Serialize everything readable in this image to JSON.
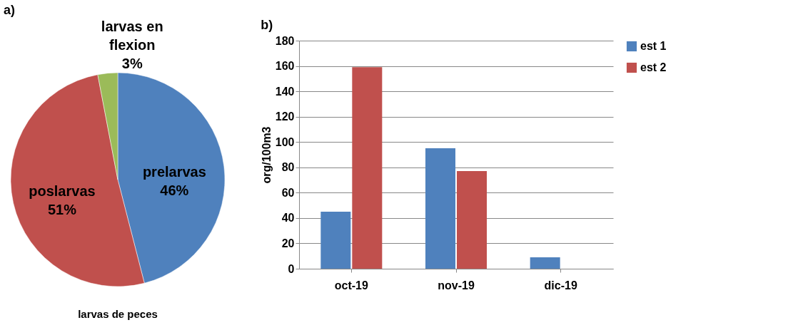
{
  "chart_data": [
    {
      "type": "pie",
      "title": "a)",
      "categories": [
        "prelarvas",
        "poslarvas",
        "larvas en flexion"
      ],
      "values": [
        46,
        51,
        3
      ],
      "colors": [
        "#4f81bd",
        "#c0504d",
        "#9bbb59"
      ],
      "value_labels": [
        "46%",
        "51%",
        "3%"
      ],
      "annotations": [
        "larvas de peces"
      ],
      "legend": false
    },
    {
      "type": "bar",
      "title": "b)",
      "categories": [
        "oct-19",
        "nov-19",
        "dic-19"
      ],
      "ylabel": "org/100m3",
      "ylim": [
        0,
        180
      ],
      "yticks": [
        0,
        20,
        40,
        60,
        80,
        100,
        120,
        140,
        160,
        180
      ],
      "grid": "y",
      "legend": "right",
      "series": [
        {
          "name": "est 1",
          "color": "#4f81bd",
          "values": [
            45,
            95,
            9
          ]
        },
        {
          "name": "est 2",
          "color": "#c0504d",
          "values": [
            159,
            77,
            0
          ]
        }
      ]
    }
  ]
}
